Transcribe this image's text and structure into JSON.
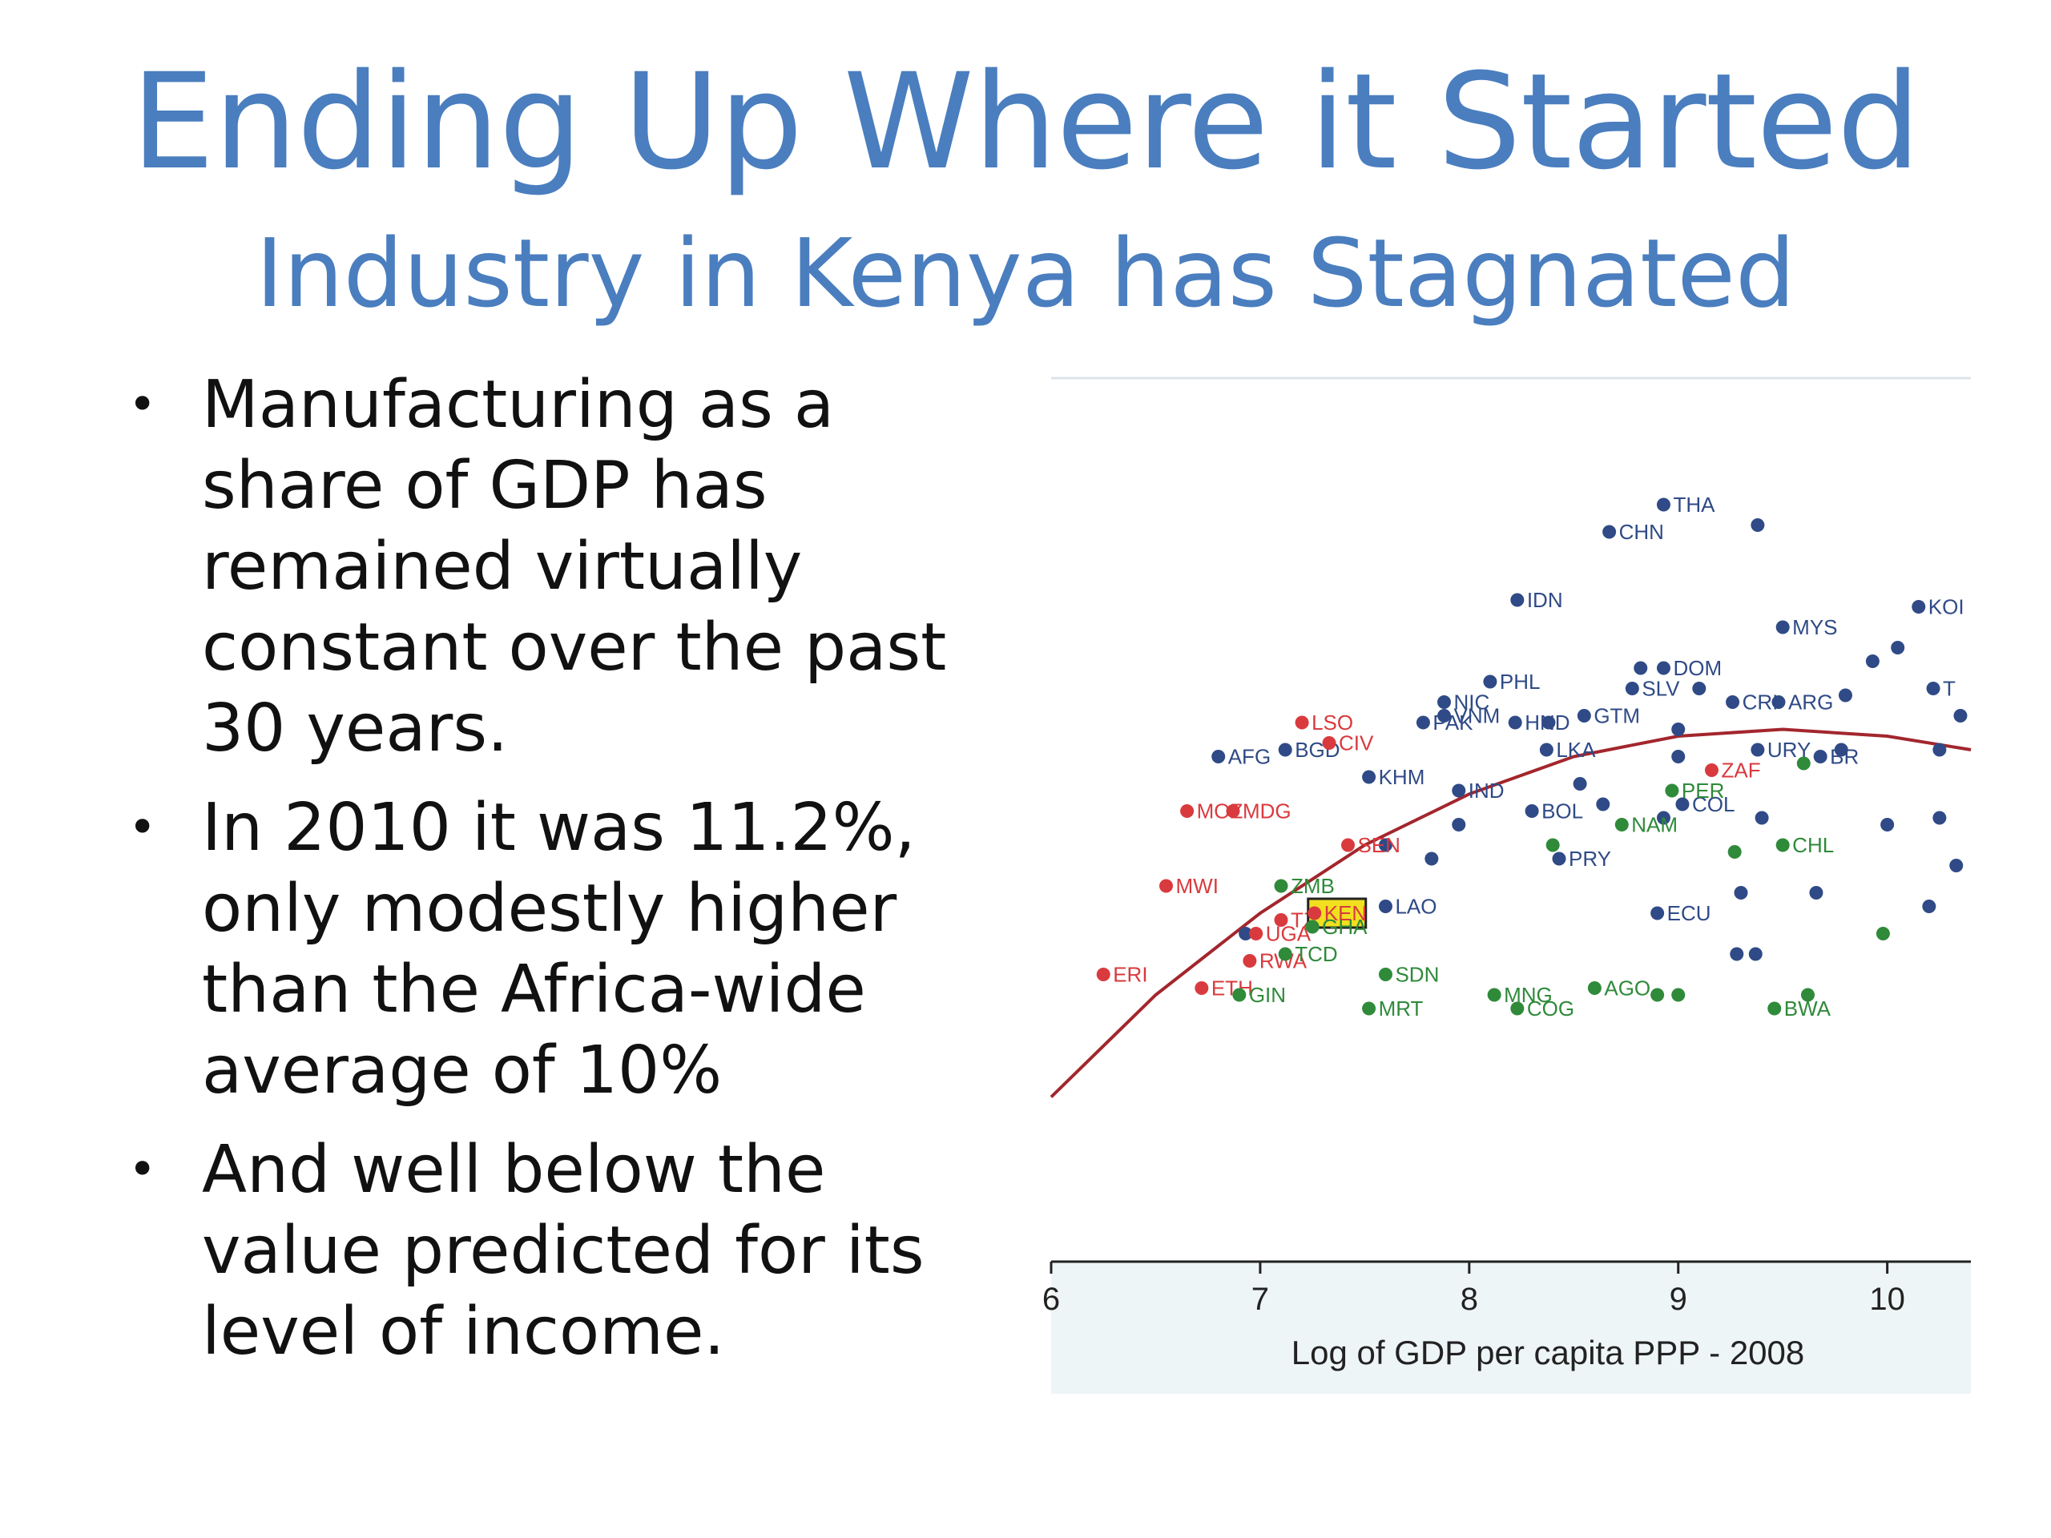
{
  "slide": {
    "title": "Ending Up Where it Started",
    "subtitle": "Industry in Kenya has Stagnated",
    "bullets": [
      "Manufacturing as a share of GDP has remained virtually constant over the past 30 years.",
      "In 2010 it was 11.2%, only modestly higher than the Africa-wide average of 10%",
      "And well below the value predicted for its level of income."
    ]
  },
  "chart_data": {
    "type": "scatter",
    "xlabel": "Log of GDP per capita PPP - 2008",
    "xticks": [
      6,
      7,
      8,
      9,
      10
    ],
    "xtick_labels": [
      "6",
      "7",
      "8",
      "9",
      "10"
    ],
    "xlim": [
      6.0,
      10.4
    ],
    "ylim": [
      0.0,
      1.0
    ],
    "colors": {
      "asia_latam": "#2f4a86",
      "africa_low": "#d93a3e",
      "africa_resource": "#2f8a3a",
      "fit": "#a3262d",
      "highlight": "#f0e020"
    },
    "highlight": "KEN",
    "fit_curve": [
      [
        6.0,
        0.13
      ],
      [
        6.5,
        0.28
      ],
      [
        7.0,
        0.4
      ],
      [
        7.5,
        0.5
      ],
      [
        8.0,
        0.575
      ],
      [
        8.5,
        0.63
      ],
      [
        9.0,
        0.66
      ],
      [
        9.5,
        0.67
      ],
      [
        10.0,
        0.66
      ],
      [
        10.4,
        0.64
      ]
    ],
    "points": [
      {
        "label": "THA",
        "x": 8.93,
        "y": 1.0,
        "group": "asia_latam"
      },
      {
        "label": "CHN",
        "x": 8.67,
        "y": 0.96,
        "group": "asia_latam"
      },
      {
        "label": "",
        "x": 9.38,
        "y": 0.97,
        "group": "asia_latam"
      },
      {
        "label": "IDN",
        "x": 8.23,
        "y": 0.86,
        "group": "asia_latam"
      },
      {
        "label": "KOI",
        "x": 10.15,
        "y": 0.85,
        "group": "asia_latam"
      },
      {
        "label": "MYS",
        "x": 9.5,
        "y": 0.82,
        "group": "asia_latam"
      },
      {
        "label": "",
        "x": 10.05,
        "y": 0.79,
        "group": "asia_latam"
      },
      {
        "label": "",
        "x": 9.93,
        "y": 0.77,
        "group": "asia_latam"
      },
      {
        "label": "PHL",
        "x": 8.1,
        "y": 0.74,
        "group": "asia_latam"
      },
      {
        "label": "",
        "x": 8.82,
        "y": 0.76,
        "group": "asia_latam"
      },
      {
        "label": "DOM",
        "x": 8.93,
        "y": 0.76,
        "group": "asia_latam"
      },
      {
        "label": "SLV",
        "x": 8.78,
        "y": 0.73,
        "group": "asia_latam"
      },
      {
        "label": "",
        "x": 9.1,
        "y": 0.73,
        "group": "asia_latam"
      },
      {
        "label": "ARG",
        "x": 9.48,
        "y": 0.71,
        "group": "asia_latam"
      },
      {
        "label": "CRI",
        "x": 9.26,
        "y": 0.71,
        "group": "asia_latam"
      },
      {
        "label": "",
        "x": 9.8,
        "y": 0.72,
        "group": "asia_latam"
      },
      {
        "label": "T",
        "x": 10.22,
        "y": 0.73,
        "group": "asia_latam"
      },
      {
        "label": "",
        "x": 10.35,
        "y": 0.69,
        "group": "asia_latam"
      },
      {
        "label": "NIC",
        "x": 7.88,
        "y": 0.71,
        "group": "asia_latam"
      },
      {
        "label": "VNM",
        "x": 7.88,
        "y": 0.69,
        "group": "asia_latam"
      },
      {
        "label": "PAK",
        "x": 7.78,
        "y": 0.68,
        "group": "asia_latam"
      },
      {
        "label": "HND",
        "x": 8.22,
        "y": 0.68,
        "group": "asia_latam"
      },
      {
        "label": "GTM",
        "x": 8.55,
        "y": 0.69,
        "group": "asia_latam"
      },
      {
        "label": "",
        "x": 8.38,
        "y": 0.68,
        "group": "asia_latam"
      },
      {
        "label": "",
        "x": 9.0,
        "y": 0.67,
        "group": "asia_latam"
      },
      {
        "label": "LKA",
        "x": 8.37,
        "y": 0.64,
        "group": "asia_latam"
      },
      {
        "label": "",
        "x": 9.0,
        "y": 0.63,
        "group": "asia_latam"
      },
      {
        "label": "URY",
        "x": 9.38,
        "y": 0.64,
        "group": "asia_latam"
      },
      {
        "label": "BR",
        "x": 9.68,
        "y": 0.63,
        "group": "asia_latam"
      },
      {
        "label": "",
        "x": 9.78,
        "y": 0.64,
        "group": "asia_latam"
      },
      {
        "label": "",
        "x": 10.25,
        "y": 0.64,
        "group": "asia_latam"
      },
      {
        "label": "AFG",
        "x": 6.8,
        "y": 0.63,
        "group": "asia_latam"
      },
      {
        "label": "BGD",
        "x": 7.12,
        "y": 0.64,
        "group": "asia_latam"
      },
      {
        "label": "KHM",
        "x": 7.52,
        "y": 0.6,
        "group": "asia_latam"
      },
      {
        "label": "IND",
        "x": 7.95,
        "y": 0.58,
        "group": "asia_latam"
      },
      {
        "label": "",
        "x": 8.53,
        "y": 0.59,
        "group": "asia_latam"
      },
      {
        "label": "BOL",
        "x": 8.3,
        "y": 0.55,
        "group": "asia_latam"
      },
      {
        "label": "",
        "x": 8.64,
        "y": 0.56,
        "group": "asia_latam"
      },
      {
        "label": "",
        "x": 8.93,
        "y": 0.54,
        "group": "asia_latam"
      },
      {
        "label": "COL",
        "x": 9.02,
        "y": 0.56,
        "group": "asia_latam"
      },
      {
        "label": "",
        "x": 9.4,
        "y": 0.54,
        "group": "asia_latam"
      },
      {
        "label": "",
        "x": 10.0,
        "y": 0.53,
        "group": "asia_latam"
      },
      {
        "label": "",
        "x": 10.25,
        "y": 0.54,
        "group": "asia_latam"
      },
      {
        "label": "",
        "x": 7.95,
        "y": 0.53,
        "group": "asia_latam"
      },
      {
        "label": "",
        "x": 7.6,
        "y": 0.5,
        "group": "asia_latam"
      },
      {
        "label": "",
        "x": 7.82,
        "y": 0.48,
        "group": "asia_latam"
      },
      {
        "label": "PRY",
        "x": 8.43,
        "y": 0.48,
        "group": "asia_latam"
      },
      {
        "label": "",
        "x": 10.33,
        "y": 0.47,
        "group": "asia_latam"
      },
      {
        "label": "",
        "x": 9.3,
        "y": 0.43,
        "group": "asia_latam"
      },
      {
        "label": "",
        "x": 9.66,
        "y": 0.43,
        "group": "asia_latam"
      },
      {
        "label": "",
        "x": 10.2,
        "y": 0.41,
        "group": "asia_latam"
      },
      {
        "label": "ECU",
        "x": 8.9,
        "y": 0.4,
        "group": "asia_latam"
      },
      {
        "label": "LAO",
        "x": 7.6,
        "y": 0.41,
        "group": "asia_latam"
      },
      {
        "label": "",
        "x": 9.28,
        "y": 0.34,
        "group": "asia_latam"
      },
      {
        "label": "",
        "x": 9.37,
        "y": 0.34,
        "group": "asia_latam"
      },
      {
        "label": "",
        "x": 6.93,
        "y": 0.37,
        "group": "asia_latam"
      },
      {
        "label": "LSO",
        "x": 7.2,
        "y": 0.68,
        "group": "africa_low"
      },
      {
        "label": "CIV",
        "x": 7.33,
        "y": 0.65,
        "group": "africa_low"
      },
      {
        "label": "MOZ",
        "x": 6.65,
        "y": 0.55,
        "group": "africa_low"
      },
      {
        "label": "MDG",
        "x": 6.87,
        "y": 0.55,
        "group": "africa_low"
      },
      {
        "label": "SEN",
        "x": 7.42,
        "y": 0.5,
        "group": "africa_low"
      },
      {
        "label": "ZAF",
        "x": 9.16,
        "y": 0.61,
        "group": "africa_low"
      },
      {
        "label": "MWI",
        "x": 6.55,
        "y": 0.44,
        "group": "africa_low"
      },
      {
        "label": "TZA",
        "x": 7.1,
        "y": 0.39,
        "group": "africa_low"
      },
      {
        "label": "UGA",
        "x": 6.98,
        "y": 0.37,
        "group": "africa_low"
      },
      {
        "label": "RWA",
        "x": 6.95,
        "y": 0.33,
        "group": "africa_low"
      },
      {
        "label": "ERI",
        "x": 6.25,
        "y": 0.31,
        "group": "africa_low"
      },
      {
        "label": "ETH",
        "x": 6.72,
        "y": 0.29,
        "group": "africa_low"
      },
      {
        "label": "KEN",
        "x": 7.26,
        "y": 0.4,
        "group": "africa_low"
      },
      {
        "label": "PER",
        "x": 8.97,
        "y": 0.58,
        "group": "africa_resource"
      },
      {
        "label": "",
        "x": 9.6,
        "y": 0.62,
        "group": "africa_resource"
      },
      {
        "label": "NAM",
        "x": 8.73,
        "y": 0.53,
        "group": "africa_resource"
      },
      {
        "label": "CHL",
        "x": 9.5,
        "y": 0.5,
        "group": "africa_resource"
      },
      {
        "label": "",
        "x": 9.27,
        "y": 0.49,
        "group": "africa_resource"
      },
      {
        "label": "",
        "x": 8.4,
        "y": 0.5,
        "group": "africa_resource"
      },
      {
        "label": "ZMB",
        "x": 7.1,
        "y": 0.44,
        "group": "africa_resource"
      },
      {
        "label": "GHA",
        "x": 7.25,
        "y": 0.38,
        "group": "africa_resource"
      },
      {
        "label": "TCD",
        "x": 7.12,
        "y": 0.34,
        "group": "africa_resource"
      },
      {
        "label": "SDN",
        "x": 7.6,
        "y": 0.31,
        "group": "africa_resource"
      },
      {
        "label": "GIN",
        "x": 6.9,
        "y": 0.28,
        "group": "africa_resource"
      },
      {
        "label": "MRT",
        "x": 7.52,
        "y": 0.26,
        "group": "africa_resource"
      },
      {
        "label": "MNG",
        "x": 8.12,
        "y": 0.28,
        "group": "africa_resource"
      },
      {
        "label": "COG",
        "x": 8.23,
        "y": 0.26,
        "group": "africa_resource"
      },
      {
        "label": "AGO",
        "x": 8.6,
        "y": 0.29,
        "group": "africa_resource"
      },
      {
        "label": "",
        "x": 8.9,
        "y": 0.28,
        "group": "africa_resource"
      },
      {
        "label": "",
        "x": 9.0,
        "y": 0.28,
        "group": "africa_resource"
      },
      {
        "label": "BWA",
        "x": 9.46,
        "y": 0.26,
        "group": "africa_resource"
      },
      {
        "label": "",
        "x": 9.62,
        "y": 0.28,
        "group": "africa_resource"
      },
      {
        "label": "",
        "x": 9.98,
        "y": 0.37,
        "group": "africa_resource"
      }
    ]
  }
}
